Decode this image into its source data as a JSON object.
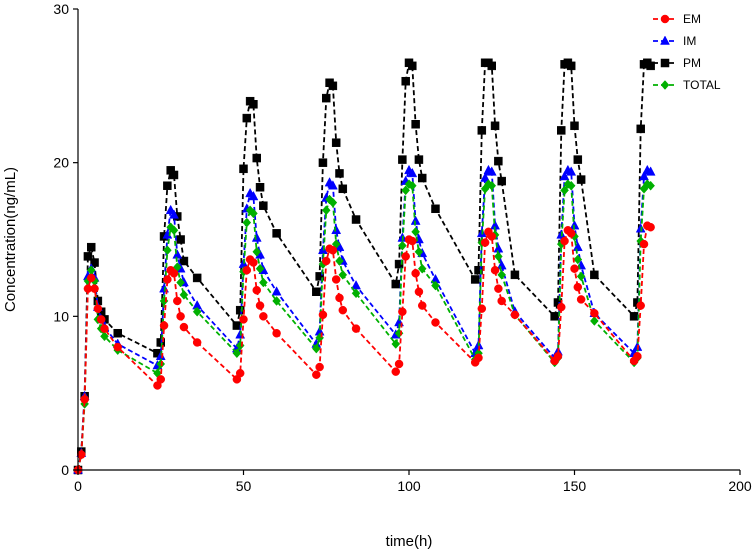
{
  "chart_data": {
    "type": "line",
    "xlabel": "time(h)",
    "ylabel": "Concentration(ng/mL)",
    "xlim": [
      0,
      200
    ],
    "ylim": [
      0,
      30
    ],
    "xticks": [
      "0",
      "50",
      "100",
      "150",
      "200"
    ],
    "yticks": [
      "0",
      "10",
      "20",
      "30"
    ],
    "grid": false,
    "legend_position": "top-right",
    "x": [
      0,
      1,
      2,
      3,
      4,
      5,
      6,
      7,
      8,
      12,
      24,
      25,
      26,
      27,
      28,
      29,
      30,
      31,
      32,
      36,
      48,
      49,
      50,
      51,
      52,
      53,
      54,
      55,
      56,
      60,
      72,
      73,
      74,
      75,
      76,
      77,
      78,
      79,
      80,
      84,
      96,
      97,
      98,
      99,
      100,
      101,
      102,
      103,
      104,
      108,
      120,
      121,
      122,
      123,
      124,
      125,
      126,
      127,
      128,
      132,
      144,
      145,
      146,
      147,
      148,
      149,
      150,
      151,
      152,
      156,
      168,
      169,
      170,
      171,
      172,
      173
    ],
    "series": [
      {
        "name": "EM",
        "color": "#ff0000",
        "marker": "circle",
        "values": [
          0,
          1.0,
          4.6,
          11.8,
          12.5,
          11.8,
          10.5,
          9.8,
          9.2,
          8.0,
          5.5,
          5.9,
          9.4,
          12.4,
          13.0,
          12.8,
          11.0,
          10.0,
          9.3,
          8.3,
          5.9,
          6.3,
          9.8,
          13.0,
          13.7,
          13.5,
          11.7,
          10.7,
          10.0,
          8.9,
          6.2,
          6.7,
          10.1,
          13.6,
          14.4,
          14.3,
          12.4,
          11.2,
          10.4,
          9.2,
          6.4,
          6.9,
          10.3,
          13.9,
          15.0,
          14.9,
          12.8,
          11.6,
          10.7,
          9.6,
          7.0,
          7.3,
          10.5,
          14.8,
          15.5,
          15.2,
          13.0,
          11.8,
          11.0,
          10.1,
          7.1,
          7.4,
          10.6,
          14.9,
          15.6,
          15.4,
          13.1,
          11.9,
          11.1,
          10.2,
          7.1,
          7.4,
          10.7,
          14.7,
          15.9,
          15.8
        ]
      },
      {
        "name": "IM",
        "color": "#0000ff",
        "marker": "triangle",
        "values": [
          0,
          1.1,
          4.8,
          12.6,
          13.1,
          12.5,
          10.6,
          9.8,
          9.3,
          8.2,
          6.8,
          7.4,
          11.8,
          15.3,
          16.9,
          16.6,
          14.0,
          13.1,
          12.2,
          10.7,
          7.9,
          8.8,
          13.4,
          17.0,
          18.0,
          17.8,
          15.1,
          14.0,
          13.0,
          11.6,
          8.2,
          9.0,
          14.3,
          17.7,
          18.7,
          18.5,
          15.6,
          14.5,
          13.6,
          12.0,
          8.8,
          9.6,
          15.1,
          18.8,
          19.5,
          19.3,
          16.2,
          15.0,
          14.1,
          12.4,
          7.6,
          8.1,
          15.4,
          19.0,
          19.5,
          19.4,
          15.9,
          14.4,
          13.3,
          10.3,
          7.3,
          7.7,
          15.3,
          19.1,
          19.5,
          19.4,
          15.9,
          14.5,
          13.3,
          10.2,
          7.6,
          8.0,
          15.7,
          19.1,
          19.5,
          19.4
        ]
      },
      {
        "name": "PM",
        "color": "#000000",
        "marker": "square",
        "values": [
          0,
          1.2,
          4.8,
          13.9,
          14.5,
          13.5,
          11.0,
          10.3,
          9.8,
          8.9,
          7.6,
          8.3,
          15.2,
          18.5,
          19.5,
          19.2,
          16.5,
          15.0,
          13.6,
          12.5,
          9.4,
          10.4,
          19.6,
          22.9,
          24.0,
          23.8,
          20.3,
          18.4,
          17.2,
          15.4,
          11.6,
          12.6,
          20.0,
          24.2,
          25.2,
          25.0,
          21.3,
          19.3,
          18.3,
          16.3,
          12.1,
          13.4,
          20.2,
          25.3,
          26.5,
          26.3,
          22.5,
          20.2,
          19.0,
          17.0,
          12.4,
          13.0,
          22.1,
          26.5,
          26.5,
          26.3,
          22.4,
          20.1,
          18.8,
          12.7,
          10.0,
          10.9,
          22.1,
          26.4,
          26.5,
          26.3,
          22.4,
          20.2,
          18.9,
          12.7,
          10.0,
          10.9,
          22.2,
          26.4,
          26.5,
          26.3
        ]
      },
      {
        "name": "TOTAL",
        "color": "#00b000",
        "marker": "diamond",
        "values": [
          0,
          1.0,
          4.3,
          12.3,
          13.0,
          12.3,
          9.8,
          9.2,
          8.7,
          7.8,
          6.3,
          6.9,
          11.0,
          14.3,
          15.8,
          15.6,
          13.2,
          12.2,
          11.4,
          10.3,
          7.6,
          8.1,
          12.9,
          16.1,
          16.9,
          16.7,
          14.2,
          13.1,
          12.2,
          11.0,
          7.9,
          8.6,
          13.4,
          16.9,
          17.6,
          17.4,
          14.7,
          13.6,
          12.7,
          11.5,
          8.2,
          8.9,
          14.6,
          18.2,
          18.6,
          18.5,
          15.5,
          14.2,
          13.1,
          12.0,
          7.2,
          7.6,
          14.8,
          18.3,
          18.6,
          18.5,
          15.3,
          13.9,
          12.7,
          10.1,
          7.0,
          7.3,
          14.7,
          18.2,
          18.6,
          18.5,
          15.2,
          13.7,
          12.6,
          9.7,
          7.0,
          7.3,
          14.9,
          18.3,
          18.6,
          18.5
        ]
      }
    ]
  }
}
